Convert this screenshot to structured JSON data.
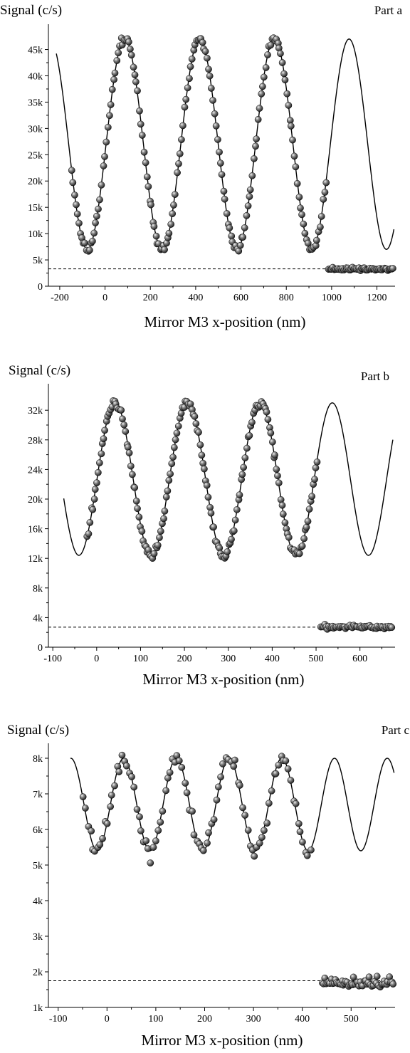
{
  "chart_data": [
    {
      "type": "scatter",
      "part_label": "Part a",
      "ylabel": "Signal (c/s)",
      "xlabel": "Mirror M3 x-position (nm)",
      "xlim": [
        -250,
        1280
      ],
      "ylim": [
        0,
        49000
      ],
      "xticks": [
        -200,
        0,
        200,
        400,
        600,
        800,
        1000,
        1200
      ],
      "yticks": [
        0,
        5000,
        10000,
        15000,
        20000,
        25000,
        30000,
        35000,
        40000,
        45000
      ],
      "ytick_labels": [
        "0",
        "5k",
        "10k",
        "15k",
        "20k",
        "25k",
        "30k",
        "35k",
        "40k",
        "45k"
      ],
      "fit": {
        "mean": 27000,
        "amplitude": 20000,
        "period": 330,
        "phase_x": 87,
        "x_range": [
          -215,
          1275
        ]
      },
      "background_level": 3300,
      "series": [
        {
          "x_range": [
            -150,
            980
          ],
          "points": 170,
          "noise": 600
        },
        {
          "x_range": [
            985,
            1275
          ],
          "points": 60,
          "mean": 3300,
          "noise": 300
        }
      ]
    },
    {
      "type": "scatter",
      "part_label": "Part b",
      "ylabel": "Signal (c/s)",
      "xlabel": "Mirror M3 x-position (nm)",
      "xlim": [
        -110,
        680
      ],
      "ylim": [
        0,
        35000
      ],
      "xticks": [
        -100,
        0,
        100,
        200,
        300,
        400,
        500,
        600
      ],
      "yticks": [
        0,
        4000,
        8000,
        12000,
        16000,
        20000,
        24000,
        28000,
        32000
      ],
      "ytick_labels": [
        "0",
        "4k",
        "8k",
        "12k",
        "16k",
        "20k",
        "24k",
        "28k",
        "32k"
      ],
      "fit": {
        "mean": 22700,
        "amplitude": 10300,
        "period": 165,
        "phase_x": 42,
        "x_range": [
          -75,
          675
        ]
      },
      "background_level": 2700,
      "series": [
        {
          "x_range": [
            -22,
            505
          ],
          "points": 170,
          "noise": 500
        },
        {
          "x_range": [
            510,
            675
          ],
          "points": 55,
          "mean": 2700,
          "noise": 250
        }
      ]
    },
    {
      "type": "scatter",
      "part_label": "Part c",
      "ylabel": "Signal (c/s)",
      "xlabel": "Mirror M3 x-position (nm)",
      "xlim": [
        -120,
        590
      ],
      "ylim": [
        1000,
        8300
      ],
      "xticks": [
        -100,
        0,
        100,
        200,
        300,
        400,
        500
      ],
      "yticks": [
        1000,
        2000,
        3000,
        4000,
        5000,
        6000,
        7000,
        8000
      ],
      "ytick_labels": [
        "1k",
        "2k",
        "3k",
        "4k",
        "5k",
        "6k",
        "7k",
        "8k"
      ],
      "fit": {
        "mean": 6700,
        "amplitude": 1300,
        "period": 108,
        "phase_x": 34,
        "x_range": [
          -75,
          588
        ]
      },
      "background_level": 1750,
      "series": [
        {
          "x_range": [
            -50,
            420
          ],
          "points": 95,
          "noise": 220
        },
        {
          "x_range": [
            440,
            588
          ],
          "points": 55,
          "mean": 1700,
          "noise": 130
        }
      ]
    }
  ]
}
